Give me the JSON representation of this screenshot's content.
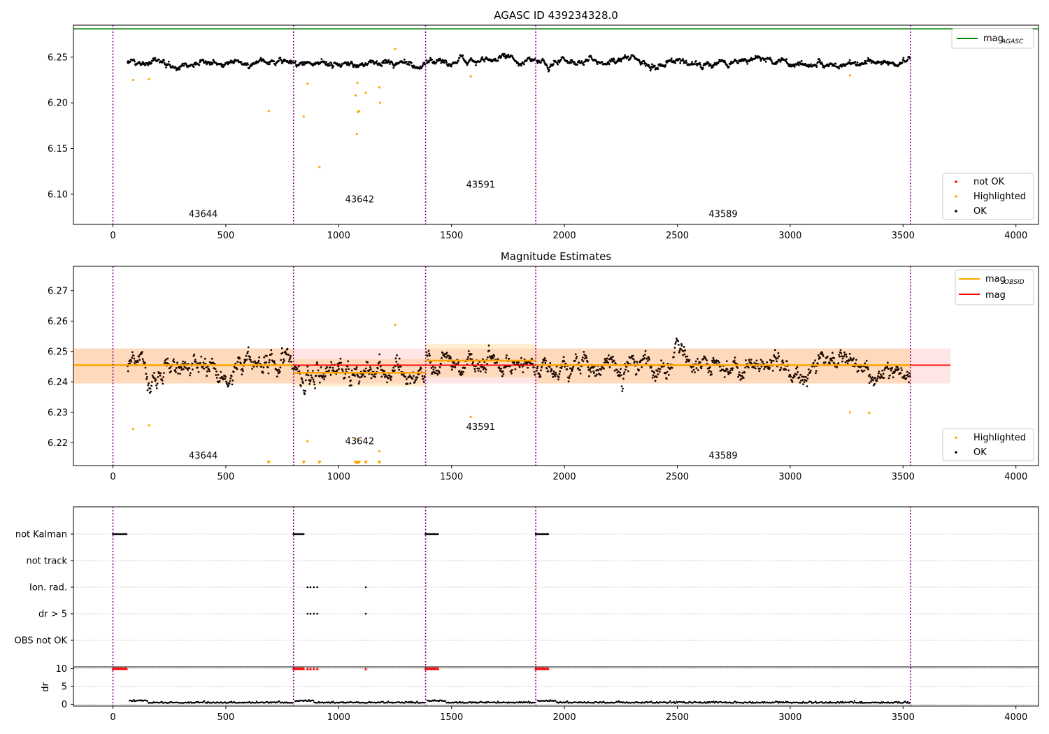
{
  "chart_data": [
    {
      "type": "scatter",
      "title": "AGASC ID 439234328.0",
      "xlim": [
        -175,
        4100
      ],
      "ylim": [
        6.067,
        6.285
      ],
      "x_ticks": [
        0,
        500,
        1000,
        1500,
        2000,
        2500,
        3000,
        3500,
        4000
      ],
      "x_tick_labels": [
        "0",
        "500",
        "1000",
        "1500",
        "2000",
        "2500",
        "3000",
        "3500",
        "4000"
      ],
      "y_ticks": [
        6.1,
        6.15,
        6.2,
        6.25
      ],
      "y_tick_labels": [
        "6.10",
        "6.15",
        "6.20",
        "6.25"
      ],
      "obsid_boundaries": [
        0,
        800,
        1385,
        1873,
        3533
      ],
      "obsid_labels": [
        {
          "text": "43644",
          "x": 400,
          "y": 6.075
        },
        {
          "text": "43642",
          "x": 1093,
          "y": 6.091
        },
        {
          "text": "43591",
          "x": 1629,
          "y": 6.107
        },
        {
          "text": "43589",
          "x": 2703,
          "y": 6.075
        }
      ],
      "mag_agasc": 6.281,
      "legend_upper": {
        "label": "mag",
        "sub": "AGASC",
        "color": "#008000",
        "placement": "upper right"
      },
      "legend_lower": [
        {
          "label": "not OK",
          "color": "#ff0000"
        },
        {
          "label": "Highlighted",
          "color": "#ffa500"
        },
        {
          "label": "OK",
          "color": "#000000"
        }
      ],
      "ok_series": {
        "color": "#000000",
        "mean": 6.2455,
        "segments": [
          {
            "x": [
              65,
              800
            ],
            "level": 6.245
          },
          {
            "x": [
              800,
              1385
            ],
            "level": 6.243
          },
          {
            "x": [
              1385,
              1873
            ],
            "level": 6.247
          },
          {
            "x": [
              1873,
              3533
            ],
            "level": 6.245
          }
        ]
      },
      "highlighted": {
        "color": "#ffa500",
        "points": [
          [
            90,
            6.225
          ],
          [
            160,
            6.226
          ],
          [
            690,
            6.191
          ],
          [
            845,
            6.185
          ],
          [
            862,
            6.221
          ],
          [
            915,
            6.13
          ],
          [
            1075,
            6.208
          ],
          [
            1080,
            6.166
          ],
          [
            1083,
            6.222
          ],
          [
            1085,
            6.19
          ],
          [
            1090,
            6.191
          ],
          [
            1120,
            6.211
          ],
          [
            1180,
            6.217
          ],
          [
            1183,
            6.2
          ],
          [
            1250,
            6.259
          ],
          [
            1585,
            6.229
          ],
          [
            3265,
            6.23
          ]
        ]
      }
    },
    {
      "type": "scatter",
      "title": "Magnitude Estimates",
      "xlim": [
        -175,
        4100
      ],
      "ylim": [
        6.2125,
        6.278
      ],
      "x_ticks": [
        0,
        500,
        1000,
        1500,
        2000,
        2500,
        3000,
        3500,
        4000
      ],
      "x_tick_labels": [
        "0",
        "500",
        "1000",
        "1500",
        "2000",
        "2500",
        "3000",
        "3500",
        "4000"
      ],
      "y_ticks": [
        6.22,
        6.23,
        6.24,
        6.25,
        6.26,
        6.27
      ],
      "y_tick_labels": [
        "6.22",
        "6.23",
        "6.24",
        "6.25",
        "6.26",
        "6.27"
      ],
      "obsid_boundaries": [
        0,
        800,
        1385,
        1873,
        3533
      ],
      "obsid_labels": [
        {
          "text": "43644",
          "x": 400,
          "y": 6.2148
        },
        {
          "text": "43642",
          "x": 1093,
          "y": 6.2195
        },
        {
          "text": "43591",
          "x": 1629,
          "y": 6.2242
        },
        {
          "text": "43589",
          "x": 2703,
          "y": 6.2148
        }
      ],
      "mag": 6.2455,
      "mag_band": [
        6.2395,
        6.251
      ],
      "mag_band_x": [
        -175,
        3710
      ],
      "mag_obsid": [
        {
          "x": [
            -175,
            800
          ],
          "value": 6.2455,
          "band": [
            6.2395,
            6.251
          ]
        },
        {
          "x": [
            800,
            1385
          ],
          "value": 6.243,
          "band": [
            6.2385,
            6.2475
          ]
        },
        {
          "x": [
            1385,
            1873
          ],
          "value": 6.247,
          "band": [
            6.2415,
            6.2525
          ]
        },
        {
          "x": [
            1873,
            3533
          ],
          "value": 6.2455,
          "band": [
            6.2395,
            6.251
          ]
        }
      ],
      "legend_upper": [
        {
          "label": "mag",
          "sub": "OBSID",
          "color": "#ffa500"
        },
        {
          "label": "mag",
          "sub": "",
          "color": "#ff0000"
        }
      ],
      "legend_lower": [
        {
          "label": "Highlighted",
          "color": "#ffa500"
        },
        {
          "label": "OK",
          "color": "#000000"
        }
      ],
      "highlighted": {
        "color": "#ffa500",
        "points": [
          [
            90,
            6.2245
          ],
          [
            160,
            6.2257
          ],
          [
            862,
            6.2205
          ],
          [
            1083,
            6.2212
          ],
          [
            1180,
            6.2172
          ],
          [
            1250,
            6.2588
          ],
          [
            1585,
            6.2285
          ],
          [
            3265,
            6.23
          ],
          [
            3350,
            6.2298
          ]
        ]
      },
      "offscale_markers": [
        690,
        845,
        915,
        1075,
        1080,
        1085,
        1090,
        1120,
        1180
      ]
    },
    {
      "type": "scatter",
      "xlim": [
        -175,
        4100
      ],
      "categories": [
        "not Kalman",
        "not track",
        "Ion. rad.",
        "dr > 5",
        "OBS not OK"
      ],
      "flag_points": [
        {
          "category": "not Kalman",
          "x": [
            0,
            5,
            10,
            15,
            20,
            25,
            30,
            35,
            40,
            45,
            50,
            55,
            60,
            800,
            805,
            810,
            815,
            820,
            825,
            830,
            835,
            840,
            845,
            1385,
            1390,
            1395,
            1400,
            1405,
            1410,
            1415,
            1420,
            1425,
            1430,
            1435,
            1440,
            1873,
            1878,
            1883,
            1888,
            1893,
            1898,
            1903,
            1908,
            1913,
            1918,
            1923,
            1928
          ]
        },
        {
          "category": "not track",
          "x": []
        },
        {
          "category": "Ion. rad.",
          "x": [
            862,
            875,
            890,
            905,
            1120
          ]
        },
        {
          "category": "dr > 5",
          "x": [
            862,
            875,
            890,
            905,
            1120
          ]
        },
        {
          "category": "OBS not OK",
          "x": []
        }
      ],
      "dr_ylabel": "dr",
      "dr_ylim": [
        -0.5,
        10.5
      ],
      "dr_ticks": [
        0,
        5,
        10
      ],
      "dr_tick_labels": [
        "0",
        "5",
        "10"
      ],
      "dr_high_x": [
        0,
        5,
        10,
        15,
        20,
        25,
        30,
        35,
        40,
        45,
        50,
        55,
        60,
        800,
        805,
        810,
        815,
        820,
        825,
        830,
        835,
        840,
        845,
        862,
        875,
        890,
        905,
        1120,
        1385,
        1390,
        1395,
        1400,
        1405,
        1410,
        1415,
        1420,
        1425,
        1430,
        1435,
        1440,
        1873,
        1878,
        1883,
        1888,
        1893,
        1898,
        1903,
        1908,
        1913,
        1918,
        1923,
        1928
      ],
      "dr_high_color": "#ff0000",
      "x_ticks": [
        0,
        500,
        1000,
        1500,
        2000,
        2500,
        3000,
        3500,
        4000
      ],
      "x_tick_labels": [
        "0",
        "500",
        "1000",
        "1500",
        "2000",
        "2500",
        "3000",
        "3500",
        "4000"
      ],
      "obsid_boundaries": [
        0,
        800,
        1385,
        1873,
        3533
      ]
    }
  ]
}
